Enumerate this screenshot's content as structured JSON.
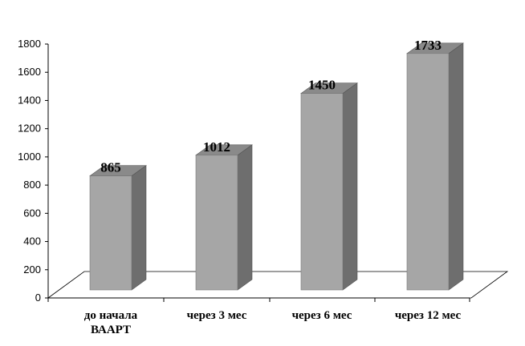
{
  "chart_data": {
    "type": "bar",
    "categories": [
      "до начала ВААРТ",
      "через 3 мес",
      "через 6 мес",
      "через 12 мес"
    ],
    "values": [
      865,
      1012,
      1450,
      1733
    ],
    "data_labels": [
      "865",
      "1012",
      "1450",
      "1733"
    ],
    "yticks": [
      "0",
      "200",
      "400",
      "600",
      "800",
      "1000",
      "1200",
      "1400",
      "1600",
      "1800"
    ],
    "ylim": [
      0,
      1800
    ],
    "grid": false,
    "legend": "none",
    "style": "3d-column",
    "colors": {
      "front": "#a6a6a6",
      "side": "#6e6e6e",
      "top": "#8a8a8a"
    }
  }
}
